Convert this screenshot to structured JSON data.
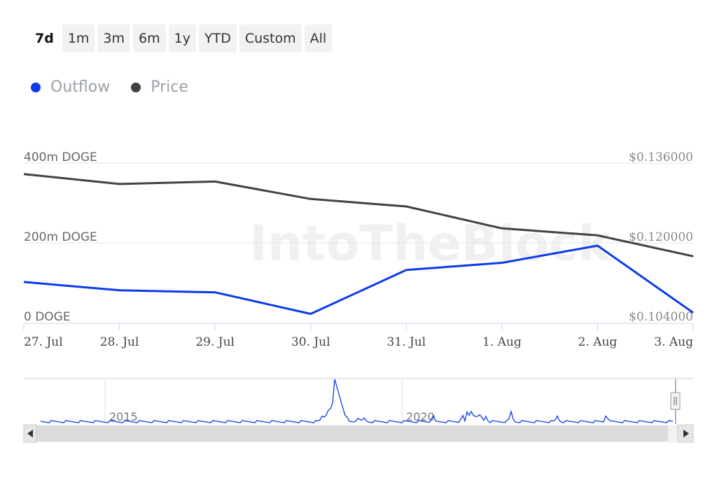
{
  "range_selector": {
    "buttons": [
      "7d",
      "1m",
      "3m",
      "6m",
      "1y",
      "YTD",
      "Custom",
      "All"
    ],
    "active": "7d"
  },
  "legend": [
    {
      "name": "Outflow",
      "color": "#0b3bea"
    },
    {
      "name": "Price",
      "color": "#3f4246"
    }
  ],
  "watermark": "IntoTheBlock",
  "chart_data": {
    "type": "line",
    "categories": [
      "27. Jul",
      "28. Jul",
      "29. Jul",
      "30. Jul",
      "31. Jul",
      "1. Aug",
      "2. Aug",
      "3. Aug"
    ],
    "series": [
      {
        "name": "Outflow",
        "axis": "left",
        "color": "#0b3bea",
        "values": [
          102,
          81,
          76,
          22,
          132,
          150,
          193,
          25
        ]
      },
      {
        "name": "Price",
        "axis": "right",
        "color": "#3f4246",
        "values": [
          0.1338,
          0.1318,
          0.1323,
          0.1288,
          0.1273,
          0.1229,
          0.1215,
          0.1173
        ]
      }
    ],
    "y_left": {
      "ticks": [
        "0 DOGE",
        "200m DOGE",
        "400m DOGE"
      ],
      "values": [
        0,
        200,
        400
      ],
      "unit": "m DOGE"
    },
    "y_right": {
      "ticks": [
        "$0.104000",
        "$0.120000",
        "$0.136000"
      ],
      "values": [
        0.104,
        0.12,
        0.136
      ]
    },
    "grid": true
  },
  "navigator": {
    "years": [
      "2015",
      "2020"
    ],
    "scroll_left_icon": "arrow-left-icon",
    "scroll_right_icon": "arrow-right-icon"
  }
}
